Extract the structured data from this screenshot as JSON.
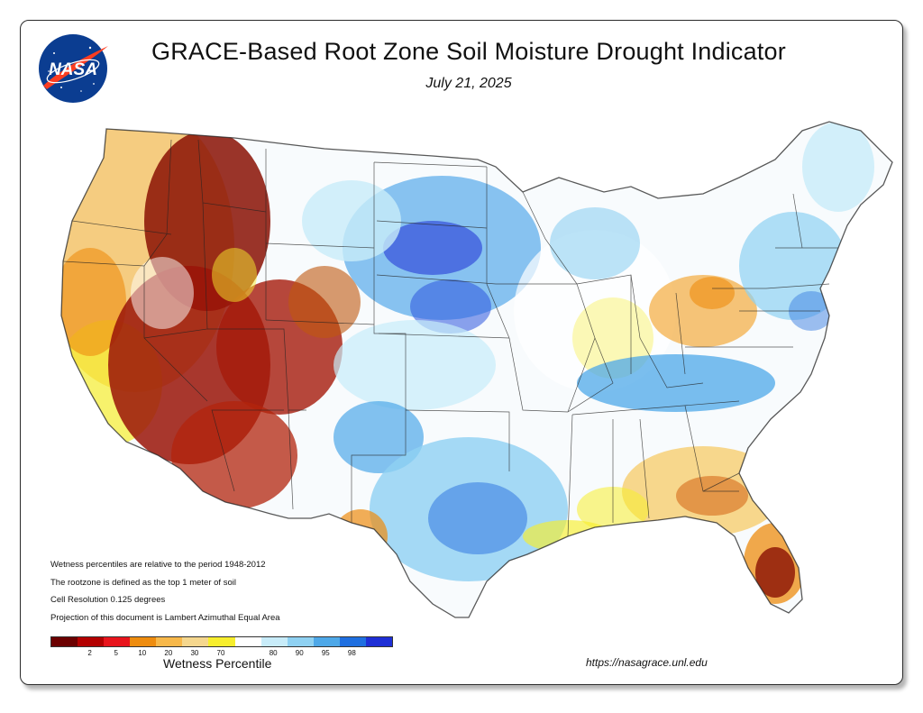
{
  "header": {
    "title": "GRACE-Based Root Zone Soil  Moisture Drought Indicator",
    "date": "July 21, 2025"
  },
  "logo": {
    "text": "NASA",
    "icon": "nasa-meatball-logo"
  },
  "notes": [
    "Wetness percentiles are relative to the period 1948-2012",
    "The rootzone is defined as the top 1 meter of soil",
    "Cell Resolution 0.125 degrees",
    "Projection of this document is Lambert Azimuthal Equal Area"
  ],
  "legend": {
    "title": "Wetness Percentile",
    "colors": [
      "#6b0000",
      "#b30000",
      "#e8141c",
      "#ee8c0f",
      "#f7b84a",
      "#f5d78e",
      "#f7ee2d",
      "#ffffff",
      "#c8ecf9",
      "#8fd1f2",
      "#4ea8e8",
      "#1f6fe0",
      "#1e2fd6"
    ],
    "ticks": [
      "2",
      "5",
      "10",
      "20",
      "30",
      "70",
      "80",
      "90",
      "95",
      "98"
    ]
  },
  "map": {
    "regions": [
      {
        "name": "pacific-northwest",
        "level": "dry"
      },
      {
        "name": "great-basin",
        "level": "very-dry"
      },
      {
        "name": "rocky-mountains",
        "level": "very-dry"
      },
      {
        "name": "southwest",
        "level": "very-dry"
      },
      {
        "name": "northern-plains",
        "level": "wet"
      },
      {
        "name": "central-plains",
        "level": "wet"
      },
      {
        "name": "texas",
        "level": "wet"
      },
      {
        "name": "midwest",
        "level": "near-normal"
      },
      {
        "name": "ohio-valley",
        "level": "dry"
      },
      {
        "name": "tennessee-valley",
        "level": "wet"
      },
      {
        "name": "southeast",
        "level": "dry"
      },
      {
        "name": "florida",
        "level": "very-dry"
      },
      {
        "name": "northeast",
        "level": "wet"
      }
    ]
  },
  "footer": {
    "url": "https://nasagrace.unl.edu"
  }
}
